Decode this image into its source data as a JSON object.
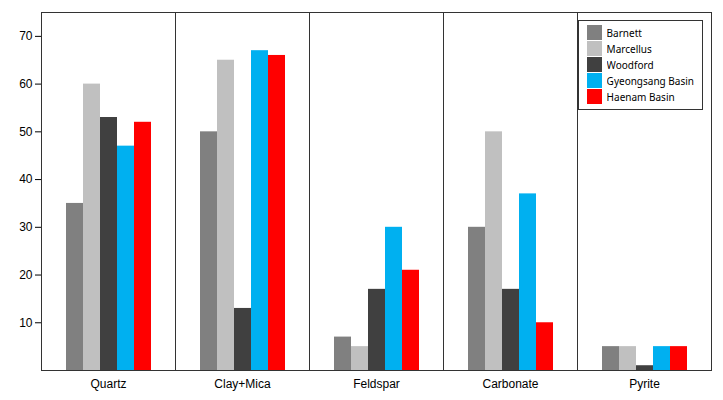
{
  "chart_data": {
    "type": "bar",
    "categories": [
      "Quartz",
      "Clay+Mica",
      "Feldspar",
      "Carbonate",
      "Pyrite"
    ],
    "series": [
      {
        "name": "Barnett",
        "color": "#808080",
        "values": [
          35,
          50,
          7,
          30,
          5
        ]
      },
      {
        "name": "Marcellus",
        "color": "#c0c0c0",
        "values": [
          60,
          65,
          5,
          50,
          5
        ]
      },
      {
        "name": "Woodford",
        "color": "#404040",
        "values": [
          53,
          13,
          17,
          17,
          1
        ]
      },
      {
        "name": "Gyeongsang Basin",
        "color": "#00b0f0",
        "values": [
          47,
          67,
          30,
          37,
          5
        ]
      },
      {
        "name": "Haenam Basin",
        "color": "#ff0000",
        "values": [
          52,
          66,
          21,
          10,
          5
        ]
      }
    ],
    "ylim": [
      0,
      75
    ],
    "yticks": [
      10,
      20,
      30,
      40,
      50,
      60,
      70
    ],
    "grid": false,
    "legend": "upper right"
  }
}
